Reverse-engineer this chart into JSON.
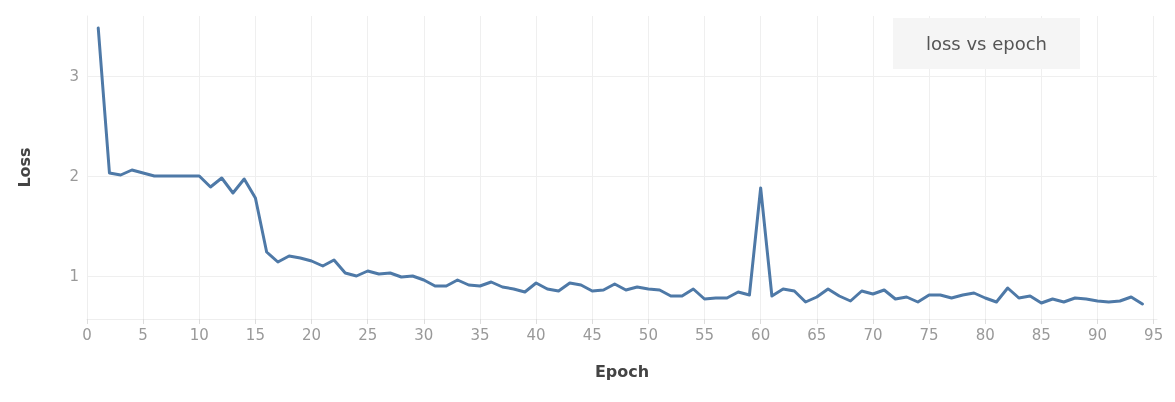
{
  "chart_data": {
    "type": "line",
    "title": "loss vs epoch",
    "xlabel": "Epoch",
    "ylabel": "Loss",
    "x": [
      1,
      2,
      3,
      4,
      5,
      6,
      7,
      8,
      9,
      10,
      11,
      12,
      13,
      14,
      15,
      16,
      17,
      18,
      19,
      20,
      21,
      22,
      23,
      24,
      25,
      26,
      27,
      28,
      29,
      30,
      31,
      32,
      33,
      34,
      35,
      36,
      37,
      38,
      39,
      40,
      41,
      42,
      43,
      44,
      45,
      46,
      47,
      48,
      49,
      50,
      51,
      52,
      53,
      54,
      55,
      56,
      57,
      58,
      59,
      60,
      61,
      62,
      63,
      64,
      65,
      66,
      67,
      68,
      69,
      70,
      71,
      72,
      73,
      74,
      75,
      76,
      77,
      78,
      79,
      80,
      81,
      82,
      83,
      84,
      85,
      86,
      87,
      88,
      89,
      90,
      91,
      92,
      93,
      94
    ],
    "series": [
      {
        "color": "#4e79a7",
        "values": [
          3.48,
          2.03,
          2.01,
          2.06,
          2.03,
          2.0,
          2.0,
          2.0,
          2.0,
          2.0,
          1.89,
          1.98,
          1.83,
          1.97,
          1.78,
          1.24,
          1.14,
          1.2,
          1.18,
          1.15,
          1.1,
          1.16,
          1.03,
          1.0,
          1.05,
          1.02,
          1.03,
          0.99,
          1.0,
          0.96,
          0.9,
          0.9,
          0.96,
          0.91,
          0.9,
          0.94,
          0.89,
          0.87,
          0.84,
          0.93,
          0.87,
          0.85,
          0.93,
          0.91,
          0.85,
          0.86,
          0.92,
          0.86,
          0.89,
          0.87,
          0.86,
          0.8,
          0.8,
          0.87,
          0.77,
          0.78,
          0.78,
          0.84,
          0.81,
          1.88,
          0.8,
          0.87,
          0.85,
          0.74,
          0.79,
          0.87,
          0.8,
          0.75,
          0.85,
          0.82,
          0.86,
          0.77,
          0.79,
          0.74,
          0.81,
          0.81,
          0.78,
          0.81,
          0.83,
          0.78,
          0.74,
          0.88,
          0.78,
          0.8,
          0.73,
          0.77,
          0.74,
          0.78,
          0.77,
          0.75,
          0.74,
          0.75,
          0.79,
          0.72
        ]
      }
    ],
    "xlim": [
      0,
      95.3
    ],
    "xticks": [
      0,
      5,
      10,
      15,
      20,
      25,
      30,
      35,
      40,
      45,
      50,
      55,
      60,
      65,
      70,
      75,
      80,
      85,
      90,
      95
    ],
    "ylim": [
      0.57,
      3.6
    ],
    "yticks": [
      1,
      2,
      3
    ],
    "grid": true,
    "marker": "none",
    "line_style": "solid"
  }
}
